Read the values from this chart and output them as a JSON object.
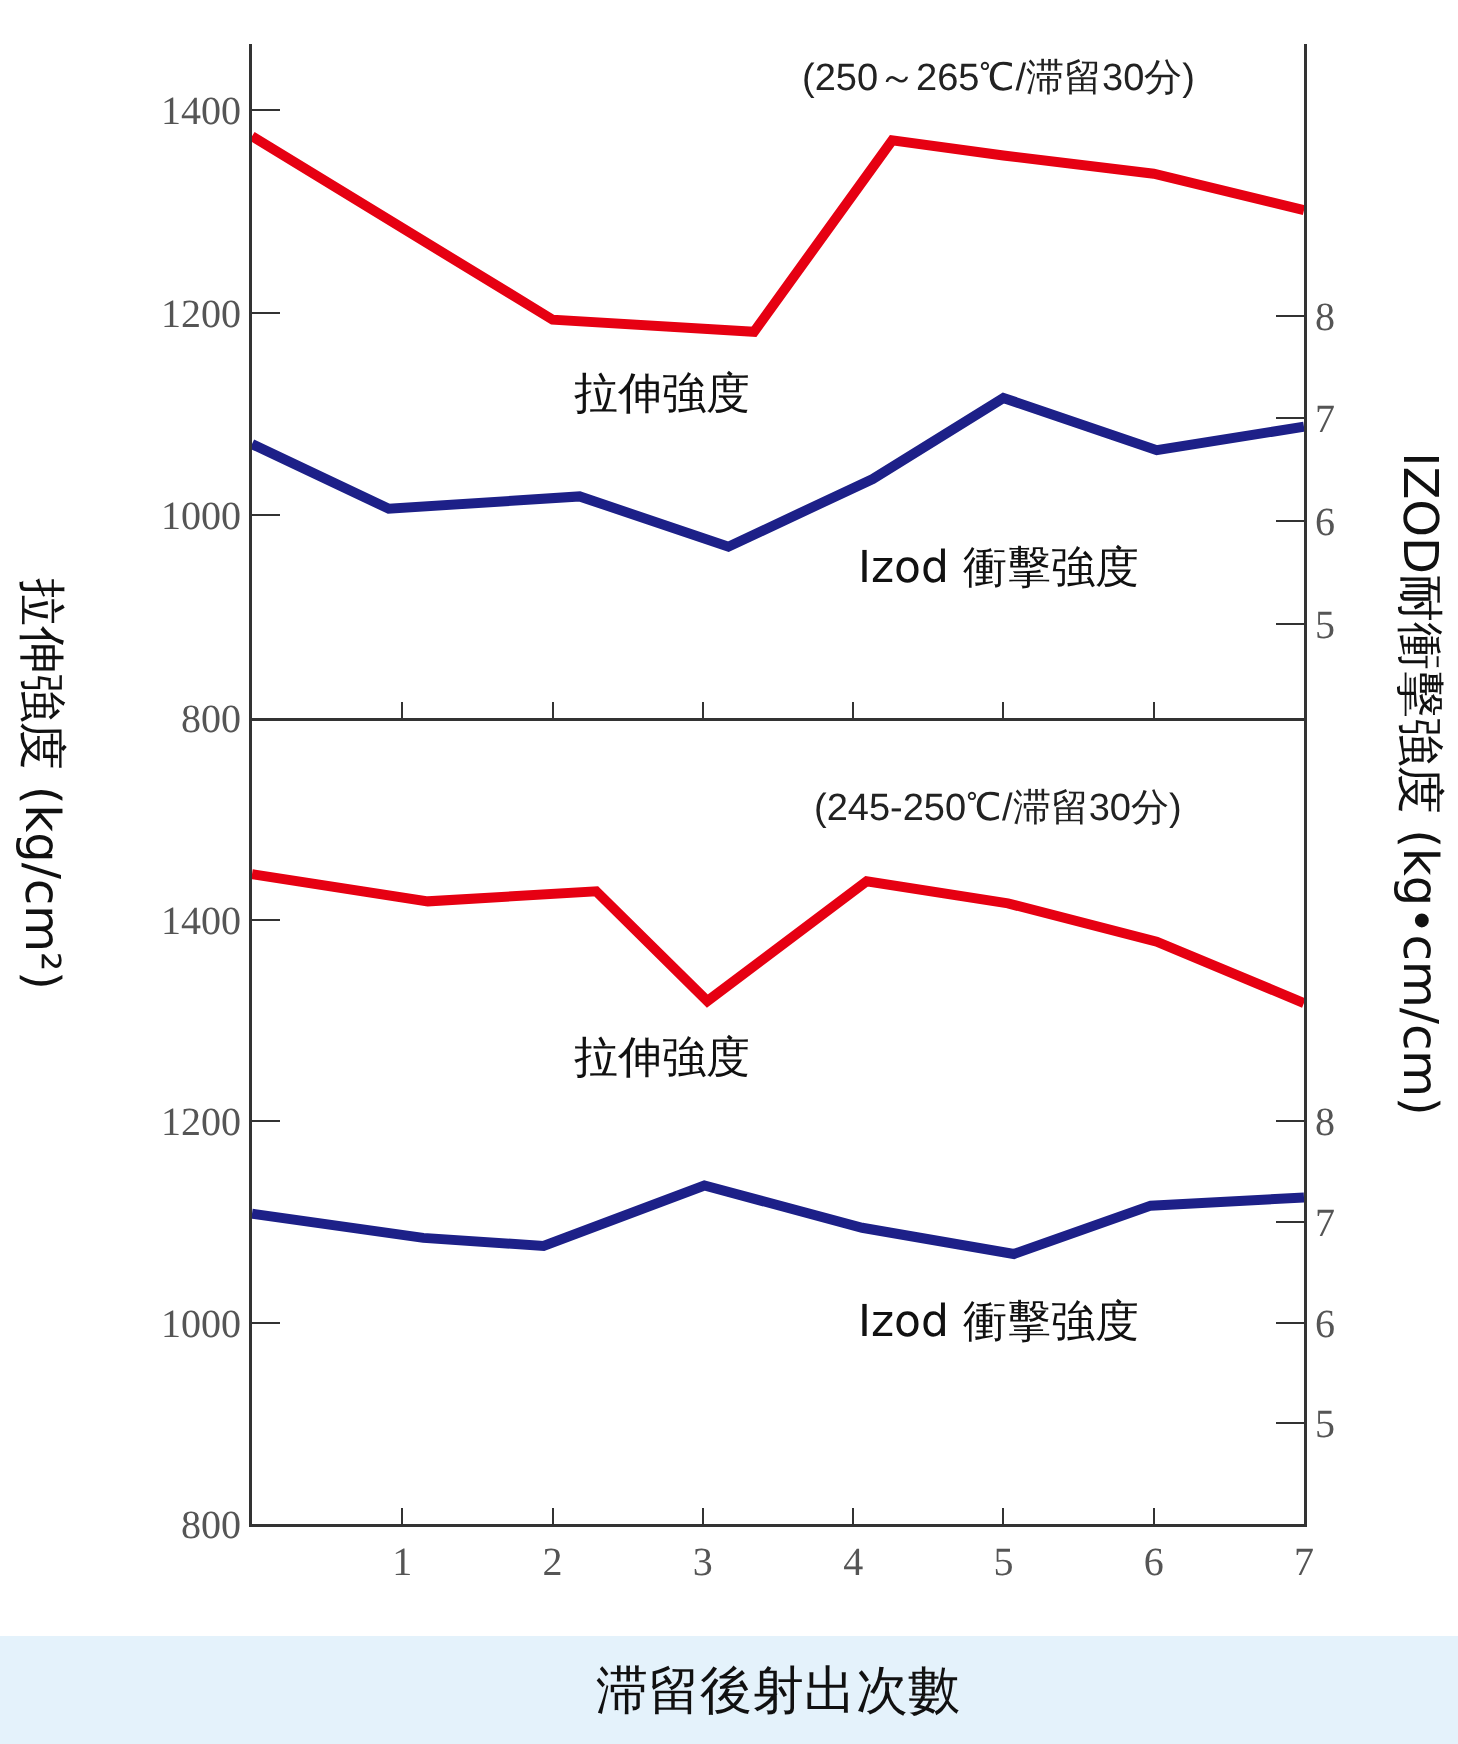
{
  "chart_data": [
    {
      "type": "line",
      "subtitle": "(250～265℃/滞留30分)",
      "ylabel": "拉伸強度 (kg/cm²)",
      "y2label": "IZOD耐衝擊強度 (kg•cm/cm)",
      "xlim": [
        0,
        7
      ],
      "ylim": [
        800,
        1465
      ],
      "y2lim": [
        4.08,
        10.65
      ],
      "xticks": [
        {
          "value": 1,
          "label": null
        },
        {
          "value": 2,
          "label": null
        },
        {
          "value": 3,
          "label": null
        },
        {
          "value": 4,
          "label": null
        },
        {
          "value": 5,
          "label": null
        },
        {
          "value": 6,
          "label": null
        },
        {
          "value": 7,
          "label": null
        }
      ],
      "yticks": [
        800,
        1000,
        1200,
        1400
      ],
      "y2ticks": [
        5,
        6,
        7,
        8
      ],
      "tick_labels": "y",
      "series": [
        {
          "name": "拉伸強度",
          "color": "#e60012",
          "x": [
            0,
            2,
            3.34,
            4.26,
            5,
            6,
            7
          ],
          "values": [
            1374,
            1193,
            1181,
            1370,
            1355,
            1337,
            1301
          ]
        },
        {
          "name": "Izod 衝擊強度",
          "color": "#1d2088",
          "axis": "y2",
          "x": [
            0,
            0.91,
            2.18,
            3.17,
            4.13,
            5,
            6.02,
            7
          ],
          "values": [
            6.75,
            6.12,
            6.24,
            5.75,
            6.41,
            7.2,
            6.69,
            6.92
          ]
        }
      ]
    },
    {
      "type": "line",
      "subtitle": "(245-250℃/滞留30分)",
      "xlabel": "滞留後射出次數",
      "xlim": [
        0,
        7
      ],
      "ylim": [
        800,
        1600
      ],
      "y2lim": [
        4,
        12
      ],
      "xticks": [
        1,
        2,
        3,
        4,
        5,
        6,
        7
      ],
      "yticks": [
        800,
        1000,
        1200,
        1400
      ],
      "y2ticks": [
        5,
        6,
        7,
        8
      ],
      "series": [
        {
          "name": "拉伸強度",
          "color": "#e60012",
          "x": [
            0,
            1.17,
            2.29,
            3.03,
            4.09,
            5.03,
            6.02,
            7
          ],
          "values": [
            1445,
            1418,
            1428,
            1319,
            1438,
            1416,
            1378,
            1317
          ]
        },
        {
          "name": "Izod 衝擊強度",
          "color": "#1d2088",
          "axis": "y2",
          "x": [
            0,
            1.14,
            1.94,
            3.01,
            4.06,
            5.07,
            5.98,
            7
          ],
          "values": [
            7.08,
            6.84,
            6.76,
            7.36,
            6.94,
            6.68,
            7.16,
            7.24
          ]
        }
      ]
    }
  ]
}
